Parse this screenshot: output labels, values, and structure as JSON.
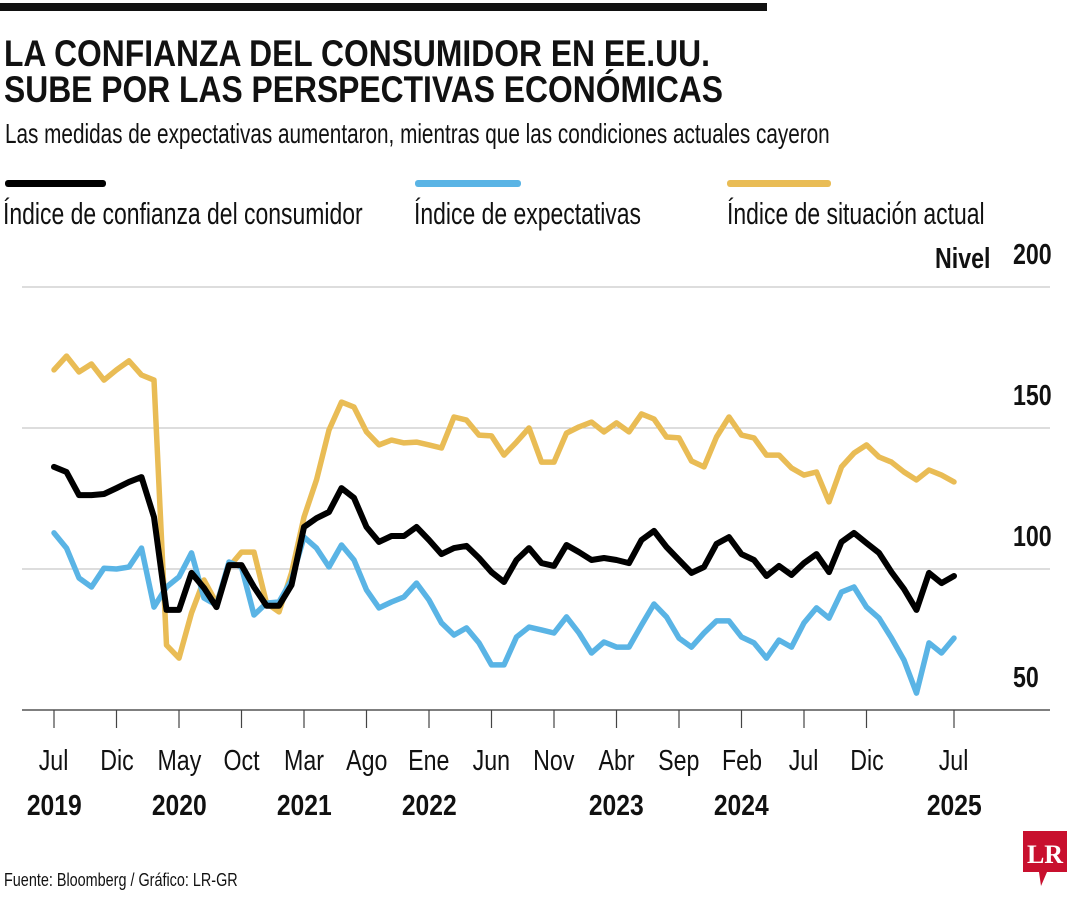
{
  "header": {
    "title_line1": "LA CONFIANZA DEL CONSUMIDOR EN EE.UU.",
    "title_line2": "SUBE POR LAS PERSPECTIVAS ECONÓMICAS",
    "subtitle": "Las medidas de expectativas aumentaron, mientras que las condiciones actuales cayeron"
  },
  "footer": {
    "source": "Fuente: Bloomberg / Gráfico: LR-GR",
    "logo_text": "LR",
    "logo_color": "#c8102e"
  },
  "chart_data": {
    "type": "line",
    "title": "LA CONFIANZA DEL CONSUMIDOR EN EE.UU. SUBE POR LAS PERSPECTIVAS ECONÓMICAS",
    "subtitle": "Las medidas de expectativas aumentaron, mientras que las condiciones actuales cayeron",
    "ylabel": "Nivel",
    "ylim": [
      50,
      200
    ],
    "yticks": [
      "50",
      "100",
      "150",
      "200"
    ],
    "grid": true,
    "legend_placement": "top",
    "x_start": "2019-07",
    "x_end": "2025-07",
    "x_frequency": "monthly",
    "xtick_labels": [
      {
        "month": "2019-07",
        "label": "Jul",
        "year": "2019"
      },
      {
        "month": "2019-12",
        "label": "Dic",
        "year": ""
      },
      {
        "month": "2020-05",
        "label": "May",
        "year": "2020"
      },
      {
        "month": "2020-10",
        "label": "Oct",
        "year": ""
      },
      {
        "month": "2021-03",
        "label": "Mar",
        "year": "2021"
      },
      {
        "month": "2021-08",
        "label": "Ago",
        "year": ""
      },
      {
        "month": "2022-01",
        "label": "Ene",
        "year": "2022"
      },
      {
        "month": "2022-06",
        "label": "Jun",
        "year": ""
      },
      {
        "month": "2022-11",
        "label": "Nov",
        "year": ""
      },
      {
        "month": "2023-04",
        "label": "Abr",
        "year": "2023"
      },
      {
        "month": "2023-09",
        "label": "Sep",
        "year": ""
      },
      {
        "month": "2024-02",
        "label": "Feb",
        "year": "2024"
      },
      {
        "month": "2024-07",
        "label": "Jul",
        "year": ""
      },
      {
        "month": "2024-12",
        "label": "Dic",
        "year": ""
      },
      {
        "month": "2025-07",
        "label": "Jul",
        "year": "2025"
      }
    ],
    "series": [
      {
        "name": "Índice de confianza del consumidor",
        "color": "#000000",
        "values": [
          136.2,
          134.4,
          126.2,
          126.2,
          126.6,
          128.7,
          130.9,
          132.6,
          118.4,
          85.5,
          85.5,
          98.6,
          93.3,
          86.5,
          101.4,
          101.4,
          93.6,
          87,
          87,
          94.3,
          114.9,
          118,
          120.2,
          128.7,
          125.2,
          114.9,
          109.6,
          111.7,
          111.7,
          114.9,
          110.3,
          105.3,
          107.4,
          108.2,
          103.9,
          98.9,
          95.4,
          103.2,
          107.4,
          102.1,
          101.1,
          108.5,
          106,
          103.2,
          103.9,
          103.2,
          102.1,
          110.3,
          113.5,
          107.8,
          103.2,
          98.6,
          100.7,
          108.9,
          111.3,
          105.3,
          103.2,
          97.5,
          101.1,
          97.9,
          102.1,
          105.3,
          98.9,
          109.6,
          112.8,
          109.2,
          105.7,
          98.9,
          92.9,
          85.5,
          98.6,
          95,
          97.5
        ]
      },
      {
        "name": "Índice de expectativas",
        "color": "#5ab4e5",
        "values": [
          112.8,
          107.4,
          96.8,
          93.6,
          100.3,
          100,
          100.7,
          107.4,
          86.5,
          93.6,
          97.2,
          105.7,
          89.7,
          87.2,
          102.5,
          100.7,
          83.7,
          87.9,
          88.3,
          96.1,
          111.3,
          107.4,
          100.7,
          108.5,
          103.2,
          92.6,
          86.2,
          88.3,
          90.1,
          95,
          89,
          80.9,
          76.6,
          79.1,
          73.8,
          66,
          66,
          75.9,
          79.4,
          78.4,
          77.3,
          83,
          77.3,
          70.2,
          74.1,
          72.3,
          72.3,
          80.1,
          87.6,
          83,
          75.5,
          72.3,
          77.3,
          81.6,
          81.6,
          75.9,
          73.8,
          68.4,
          74.8,
          72.3,
          80.9,
          86.2,
          82.6,
          91.8,
          93.6,
          86.5,
          82.6,
          75.5,
          67.7,
          56,
          73.8,
          70.2,
          75.5
        ]
      },
      {
        "name": "Índice de situación actual",
        "color": "#e9bc55",
        "values": [
          170.6,
          175.5,
          169.9,
          172.7,
          167,
          170.6,
          173.8,
          168.8,
          167,
          73,
          68.4,
          84.4,
          96.1,
          87.9,
          100.7,
          106,
          106,
          87.9,
          84.8,
          98.6,
          118.4,
          131.6,
          149.3,
          159.2,
          157.4,
          148.6,
          144,
          145.7,
          144.7,
          145,
          144,
          142.9,
          153.9,
          152.8,
          147.5,
          147.2,
          140.4,
          145,
          150,
          137.9,
          137.9,
          148.2,
          150.4,
          152.1,
          148.6,
          151.8,
          148.6,
          155,
          153.2,
          146.8,
          146.5,
          138.3,
          136.2,
          146.8,
          153.9,
          147.5,
          146.5,
          140.4,
          140.4,
          135.8,
          133.3,
          134.4,
          123.8,
          136.2,
          141.1,
          144,
          139.7,
          137.9,
          134.4,
          131.6,
          135.1,
          133.3,
          130.9
        ]
      }
    ]
  }
}
